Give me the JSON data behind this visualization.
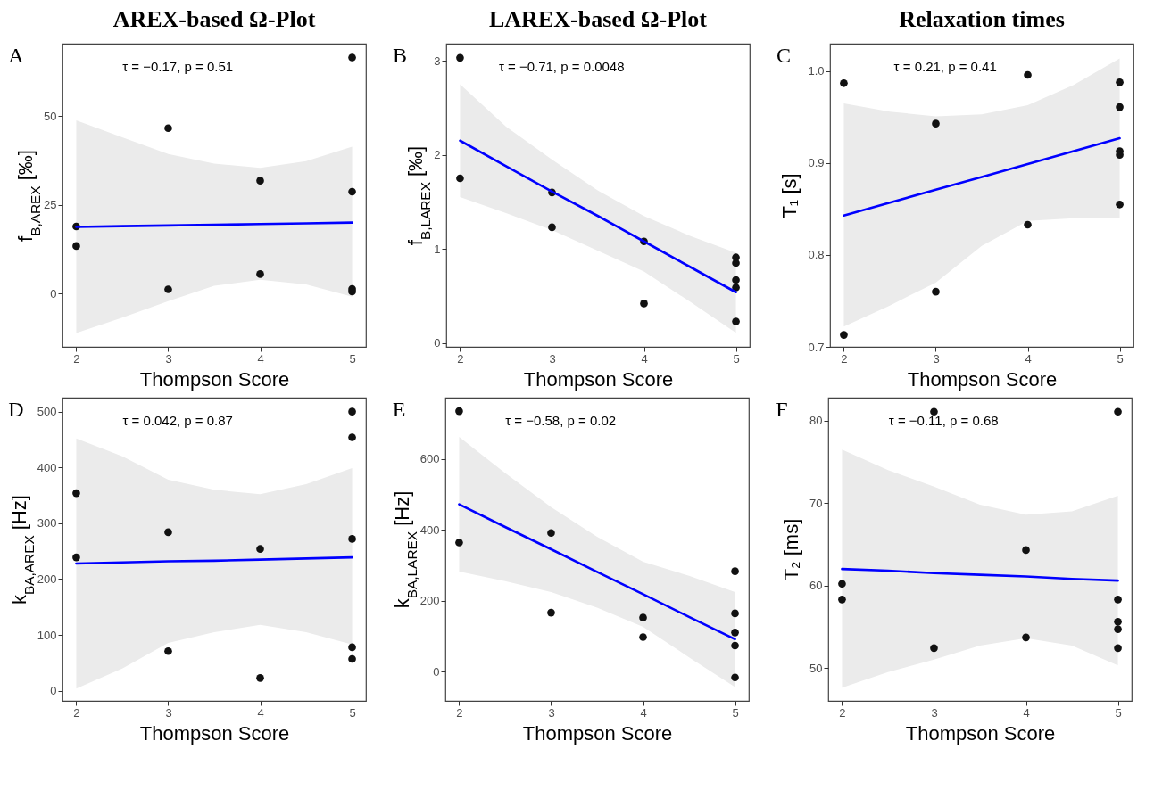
{
  "chart_data": [
    {
      "type": "scatter",
      "title": "AREX-based Ω-Plot",
      "xlabel": "Thompson Score",
      "ylabel": "f$_{B,AREX}$ [‰]",
      "annotations": [
        "A",
        "τ = −0.17, p = 0.51"
      ],
      "xlim": [
        1.85,
        5.15
      ],
      "xticks": [
        2,
        3,
        4,
        5
      ],
      "ylim": [
        -15,
        70.4
      ],
      "yticks": [
        0,
        25,
        50
      ],
      "series": [
        {
          "color": "#111111",
          "marker": "circle",
          "x": [
            2,
            2,
            3,
            3,
            4,
            4,
            5,
            5,
            5,
            5
          ],
          "values": [
            18.9,
            13.4,
            46.6,
            1.2,
            31.8,
            5.5,
            66.5,
            28.7,
            1.3,
            0.6
          ]
        },
        {
          "type": "line",
          "color": "#0000ff",
          "x": [
            2,
            2.5,
            3,
            3.5,
            4,
            4.5,
            5
          ],
          "values": [
            18.8,
            19.0,
            19.2,
            19.4,
            19.6,
            19.8,
            20.0
          ],
          "lower": [
            -11.1,
            -6.8,
            -2.1,
            2.2,
            3.9,
            2.6,
            -0.9
          ],
          "upper": [
            48.8,
            44,
            39.3,
            36.6,
            35.4,
            37.3,
            41.4
          ]
        }
      ]
    },
    {
      "type": "scatter",
      "title": "LAREX-based Ω-Plot",
      "xlabel": "Thompson Score",
      "ylabel": "f$_{B,LAREX}$ [‰]",
      "annotations": [
        "B",
        "τ = −0.71, p = 0.0048"
      ],
      "xlim": [
        1.85,
        5.15
      ],
      "xticks": [
        2,
        3,
        4,
        5
      ],
      "ylim": [
        -0.04,
        3.18
      ],
      "yticks": [
        0,
        1,
        2,
        3
      ],
      "series": [
        {
          "color": "#111111",
          "marker": "circle",
          "x": [
            2,
            2,
            3,
            3,
            4,
            4,
            5,
            5,
            5,
            5,
            5
          ],
          "values": [
            3.03,
            1.75,
            1.6,
            1.23,
            1.08,
            0.42,
            0.91,
            0.85,
            0.67,
            0.59,
            0.23
          ]
        },
        {
          "type": "line",
          "color": "#0000ff",
          "x": [
            2,
            2.5,
            3,
            3.5,
            4,
            4.5,
            5
          ],
          "values": [
            2.15,
            1.88,
            1.61,
            1.35,
            1.08,
            0.81,
            0.54
          ],
          "lower": [
            1.55,
            1.38,
            1.2,
            0.98,
            0.76,
            0.44,
            0.11
          ],
          "upper": [
            2.75,
            2.3,
            1.95,
            1.62,
            1.35,
            1.14,
            0.96
          ]
        }
      ]
    },
    {
      "type": "scatter",
      "title": "Relaxation times",
      "xlabel": "Thompson Score",
      "ylabel": "T₁ [s]",
      "annotations": [
        "C",
        "τ = 0.21, p = 0.41"
      ],
      "xlim": [
        1.85,
        5.15
      ],
      "xticks": [
        2,
        3,
        4,
        5
      ],
      "ylim": [
        0.7,
        1.03
      ],
      "yticks": [
        0.7,
        0.8,
        0.9,
        {
          "value": 1,
          "label": "1.0"
        }
      ],
      "series": [
        {
          "color": "#111111",
          "marker": "circle",
          "x": [
            2,
            2,
            3,
            3,
            4,
            4,
            5,
            5,
            5,
            5,
            5
          ],
          "values": [
            0.987,
            0.713,
            0.943,
            0.76,
            0.996,
            0.833,
            0.988,
            0.961,
            0.913,
            0.909,
            0.855
          ]
        },
        {
          "type": "line",
          "color": "#0000ff",
          "x": [
            2,
            2.5,
            3,
            3.5,
            4,
            4.5,
            5
          ],
          "values": [
            0.843,
            0.857,
            0.871,
            0.885,
            0.899,
            0.913,
            0.927
          ],
          "lower": [
            0.722,
            0.745,
            0.77,
            0.81,
            0.837,
            0.84,
            0.84
          ],
          "upper": [
            0.965,
            0.956,
            0.951,
            0.953,
            0.963,
            0.985,
            1.014
          ]
        }
      ]
    },
    {
      "type": "scatter",
      "xlabel": "Thompson Score",
      "ylabel": "k$_{BA,AREX}$ [Hz]",
      "annotations": [
        "D",
        "τ = 0.042, p = 0.87"
      ],
      "xlim": [
        1.85,
        5.15
      ],
      "xticks": [
        2,
        3,
        4,
        5
      ],
      "ylim": [
        -18,
        525
      ],
      "yticks": [
        0,
        100,
        200,
        300,
        400,
        500
      ],
      "series": [
        {
          "color": "#111111",
          "marker": "circle",
          "x": [
            2,
            2,
            3,
            3,
            4,
            4,
            5,
            5,
            5,
            5,
            5
          ],
          "values": [
            354,
            239,
            284,
            71,
            254,
            23,
            500,
            454,
            272,
            78,
            57
          ]
        },
        {
          "type": "line",
          "color": "#0000ff",
          "x": [
            2,
            2.5,
            3,
            3.5,
            4,
            4.5,
            5
          ],
          "values": [
            228,
            230,
            232,
            233,
            235,
            237,
            239
          ],
          "lower": [
            4,
            40,
            86,
            105,
            118,
            105,
            83
          ],
          "upper": [
            452,
            420,
            378,
            360,
            352,
            370,
            399
          ]
        }
      ]
    },
    {
      "type": "scatter",
      "xlabel": "Thompson Score",
      "ylabel": "k$_{BA,LAREX}$ [Hz]",
      "annotations": [
        "E",
        "τ = −0.58, p = 0.02"
      ],
      "xlim": [
        1.85,
        5.15
      ],
      "xticks": [
        2,
        3,
        4,
        5
      ],
      "ylim": [
        -83,
        773
      ],
      "yticks": [
        0,
        200,
        400,
        600
      ],
      "series": [
        {
          "color": "#111111",
          "marker": "circle",
          "x": [
            2,
            2,
            3,
            3,
            4,
            4,
            5,
            5,
            5,
            5,
            5
          ],
          "values": [
            735,
            364,
            391,
            166,
            152,
            97,
            283,
            164,
            110,
            73,
            -17
          ]
        },
        {
          "type": "line",
          "color": "#0000ff",
          "x": [
            2,
            2.5,
            3,
            3.5,
            4,
            4.5,
            5
          ],
          "values": [
            472,
            408,
            345,
            281,
            218,
            154,
            91
          ],
          "lower": [
            282,
            255,
            224,
            180,
            126,
            40,
            -44
          ],
          "upper": [
            662,
            560,
            464,
            380,
            310,
            270,
            224
          ]
        }
      ]
    },
    {
      "type": "scatter",
      "xlabel": "Thompson Score",
      "ylabel": "T₂ [ms]",
      "annotations": [
        "F",
        "τ = −0.11, p = 0.68"
      ],
      "xlim": [
        1.85,
        5.15
      ],
      "xticks": [
        2,
        3,
        4,
        5
      ],
      "ylim": [
        46,
        82.8
      ],
      "yticks": [
        50,
        60,
        70,
        80
      ],
      "series": [
        {
          "color": "#111111",
          "marker": "circle",
          "x": [
            2,
            2,
            3,
            3,
            4,
            4,
            5,
            5,
            5,
            5,
            5
          ],
          "values": [
            60.2,
            58.3,
            81.1,
            52.4,
            64.3,
            53.7,
            81.1,
            58.3,
            55.6,
            54.7,
            52.4
          ]
        },
        {
          "type": "line",
          "color": "#0000ff",
          "x": [
            2,
            2.5,
            3,
            3.5,
            4,
            4.5,
            5
          ],
          "values": [
            62.0,
            61.8,
            61.5,
            61.3,
            61.1,
            60.8,
            60.6
          ],
          "lower": [
            47.6,
            49.5,
            51.0,
            52.7,
            53.6,
            52.7,
            50.3
          ],
          "upper": [
            76.5,
            74,
            72.0,
            69.8,
            68.6,
            69,
            70.9
          ]
        }
      ]
    }
  ]
}
